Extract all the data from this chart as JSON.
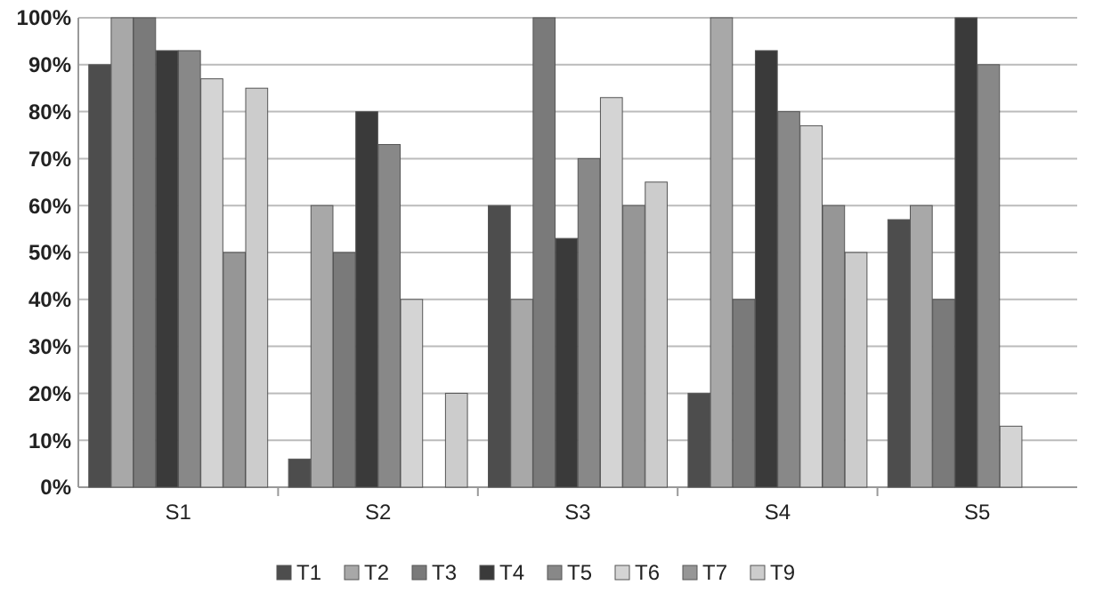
{
  "chart_data": {
    "type": "bar",
    "categories": [
      "S1",
      "S2",
      "S3",
      "S4",
      "S5"
    ],
    "series": [
      {
        "name": "T1",
        "color": "#4d4d4d",
        "values": [
          90,
          6,
          60,
          20,
          57
        ]
      },
      {
        "name": "T2",
        "color": "#a8a8a8",
        "values": [
          100,
          60,
          40,
          100,
          60
        ]
      },
      {
        "name": "T3",
        "color": "#7a7a7a",
        "values": [
          100,
          50,
          100,
          40,
          40
        ]
      },
      {
        "name": "T4",
        "color": "#3a3a3a",
        "values": [
          93,
          80,
          53,
          93,
          100
        ]
      },
      {
        "name": "T5",
        "color": "#888888",
        "values": [
          93,
          73,
          70,
          80,
          90
        ]
      },
      {
        "name": "T6",
        "color": "#d4d4d4",
        "values": [
          87,
          40,
          83,
          77,
          13
        ]
      },
      {
        "name": "T7",
        "color": "#969696",
        "values": [
          50,
          0,
          60,
          60,
          0
        ]
      },
      {
        "name": "T9",
        "color": "#cccccc",
        "values": [
          85,
          20,
          65,
          50,
          0
        ]
      }
    ],
    "ylim": [
      0,
      100
    ],
    "yticks": [
      {
        "value": 0,
        "label": "0%"
      },
      {
        "value": 10,
        "label": "10%"
      },
      {
        "value": 20,
        "label": "20%"
      },
      {
        "value": 30,
        "label": "30%"
      },
      {
        "value": 40,
        "label": "40%"
      },
      {
        "value": 50,
        "label": "50%"
      },
      {
        "value": 60,
        "label": "60%"
      },
      {
        "value": 70,
        "label": "70%"
      },
      {
        "value": 80,
        "label": "80%"
      },
      {
        "value": 90,
        "label": "90%"
      },
      {
        "value": 100,
        "label": "100%"
      }
    ],
    "grid": "y",
    "legend": "bottom"
  }
}
